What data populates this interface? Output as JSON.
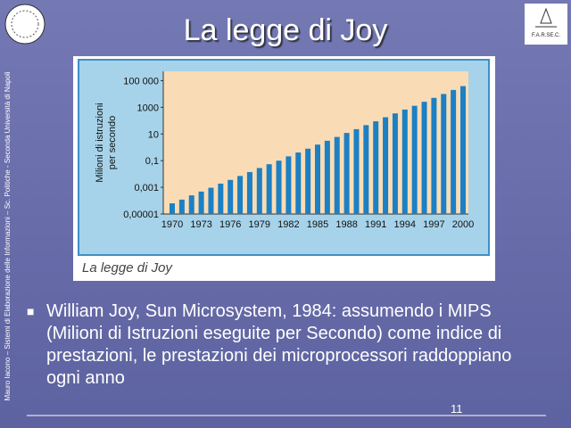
{
  "slide": {
    "title": "La legge di Joy",
    "side_text": "Mauro Iacono – Sistemi di Elaborazione delle Informazioni – Sc. Politiche - Seconda Università di Napoli",
    "logo_right": "F.A.R.SE.C.",
    "bullet": "William Joy, Sun Microsystem, 1984: assumendo i MIPS (Milioni di Istruzioni eseguite per Secondo) come indice di prestazioni, le prestazioni dei microprocessori raddoppiano ogni anno",
    "page_number": "11",
    "figure_caption": "La legge di Joy"
  },
  "chart_data": {
    "type": "bar",
    "ylabel": [
      "Milioni di istruzioni",
      "per secondo"
    ],
    "color": "#1c80c4",
    "log_scale": true,
    "categories": [
      "1970",
      null,
      null,
      "1973",
      null,
      null,
      "1976",
      null,
      null,
      "1979",
      null,
      null,
      "1982",
      null,
      null,
      "1985",
      null,
      null,
      "1988",
      null,
      null,
      "1991",
      null,
      null,
      "1994",
      null,
      null,
      "1997",
      null,
      null,
      "2000"
    ],
    "values": [
      6.3e-05,
      0.00012,
      0.00025,
      0.00048,
      0.00093,
      0.0019,
      0.0036,
      0.0071,
      0.014,
      0.028,
      0.054,
      0.1,
      0.21,
      0.41,
      0.79,
      1.6,
      3.1,
      6.0,
      12,
      23,
      46,
      89,
      180,
      350,
      680,
      1300,
      2600,
      5100,
      10000,
      20000,
      39000
    ],
    "ylim": [
      1e-05,
      500000
    ],
    "yticks": [
      {
        "value": 1e-05,
        "label": "0,00001"
      },
      {
        "value": 0.001,
        "label": "0,001"
      },
      {
        "value": 0.1,
        "label": "0,1"
      },
      10,
      1000,
      {
        "value": 100000,
        "label": "100 000"
      }
    ]
  }
}
